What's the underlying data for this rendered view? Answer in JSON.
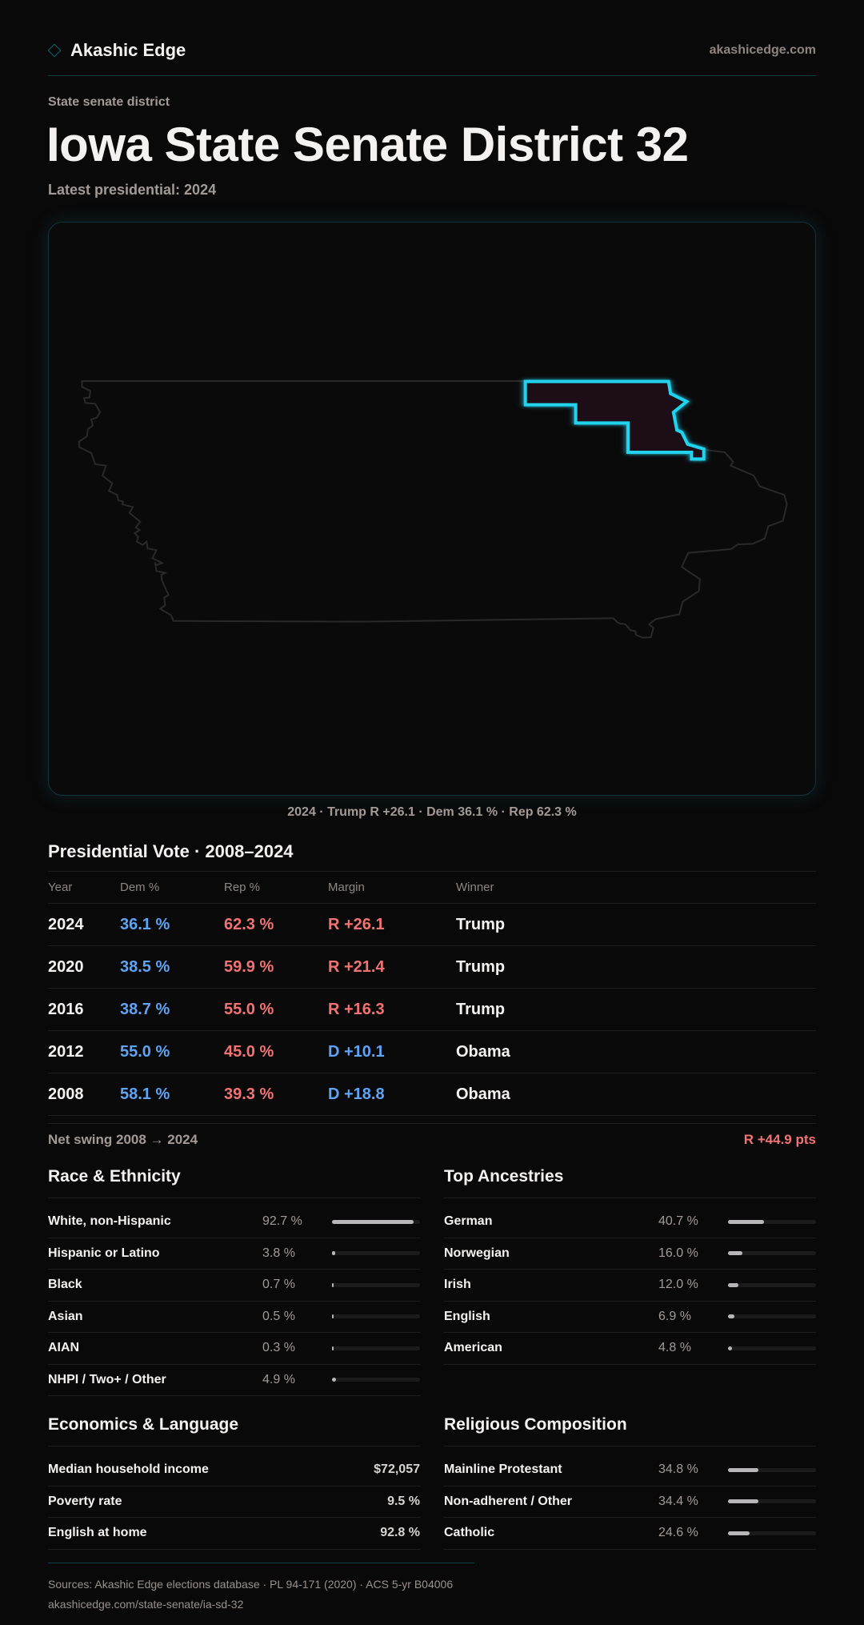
{
  "header": {
    "brand": "Akashic Edge",
    "domain": "akashicedge.com"
  },
  "page": {
    "kicker": "State senate district",
    "title": "Iowa State Senate District 32",
    "latest": "Latest presidential: 2024"
  },
  "map": {
    "caption": "2024 · Trump R +26.1 · Dem 36.1 % · Rep 62.3 %",
    "highlight_color": "#22d3ee"
  },
  "presidential": {
    "title": "Presidential Vote · 2008–2024",
    "columns": [
      "Year",
      "Dem %",
      "Rep %",
      "Margin",
      "Winner"
    ],
    "rows": [
      {
        "year": "2024",
        "dem": "36.1 %",
        "rep": "62.3 %",
        "margin": "R +26.1",
        "winner": "Trump",
        "party": "R"
      },
      {
        "year": "2020",
        "dem": "38.5 %",
        "rep": "59.9 %",
        "margin": "R +21.4",
        "winner": "Trump",
        "party": "R"
      },
      {
        "year": "2016",
        "dem": "38.7 %",
        "rep": "55.0 %",
        "margin": "R +16.3",
        "winner": "Trump",
        "party": "R"
      },
      {
        "year": "2012",
        "dem": "55.0 %",
        "rep": "45.0 %",
        "margin": "D +10.1",
        "winner": "Obama",
        "party": "D"
      },
      {
        "year": "2008",
        "dem": "58.1 %",
        "rep": "39.3 %",
        "margin": "D +18.8",
        "winner": "Obama",
        "party": "D"
      }
    ],
    "swing_label": "Net swing 2008 → 2024",
    "swing_value": "R +44.9 pts"
  },
  "race": {
    "title": "Race & Ethnicity",
    "rows": [
      {
        "label": "White, non-Hispanic",
        "value": "92.7 %",
        "pct": 92.7
      },
      {
        "label": "Hispanic or Latino",
        "value": "3.8 %",
        "pct": 3.8
      },
      {
        "label": "Black",
        "value": "0.7 %",
        "pct": 0.7
      },
      {
        "label": "Asian",
        "value": "0.5 %",
        "pct": 0.5
      },
      {
        "label": "AIAN",
        "value": "0.3 %",
        "pct": 0.3
      },
      {
        "label": "NHPI / Two+ / Other",
        "value": "4.9 %",
        "pct": 4.9
      }
    ]
  },
  "ancestry": {
    "title": "Top Ancestries",
    "rows": [
      {
        "label": "German",
        "value": "40.7 %",
        "pct": 40.7
      },
      {
        "label": "Norwegian",
        "value": "16.0 %",
        "pct": 16.0
      },
      {
        "label": "Irish",
        "value": "12.0 %",
        "pct": 12.0
      },
      {
        "label": "English",
        "value": "6.9 %",
        "pct": 6.9
      },
      {
        "label": "American",
        "value": "4.8 %",
        "pct": 4.8
      }
    ]
  },
  "economics": {
    "title": "Economics & Language",
    "rows": [
      {
        "label": "Median household income",
        "value": "$72,057"
      },
      {
        "label": "Poverty rate",
        "value": "9.5 %"
      },
      {
        "label": "English at home",
        "value": "92.8 %"
      }
    ]
  },
  "religion": {
    "title": "Religious Composition",
    "rows": [
      {
        "label": "Mainline Protestant",
        "value": "34.8 %",
        "pct": 34.8
      },
      {
        "label": "Non-adherent / Other",
        "value": "34.4 %",
        "pct": 34.4
      },
      {
        "label": "Catholic",
        "value": "24.6 %",
        "pct": 24.6
      }
    ]
  },
  "footer": {
    "sources": "Sources: Akashic Edge elections database · PL 94-171 (2020) · ACS 5-yr B04006",
    "url": "akashicedge.com/state-senate/ia-sd-32"
  }
}
